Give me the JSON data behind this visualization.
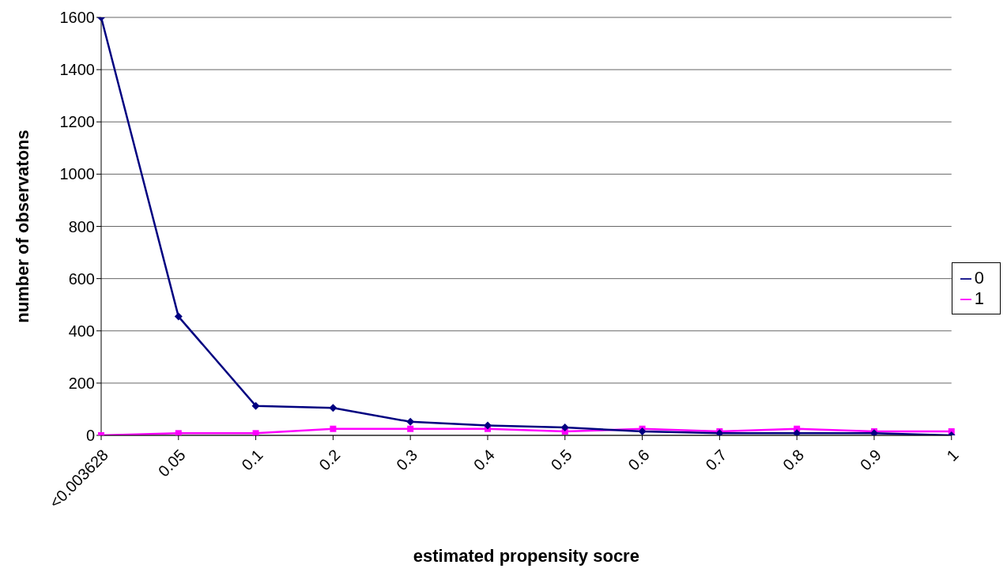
{
  "chart_data": {
    "type": "line",
    "xlabel": "estimated propensity socre",
    "ylabel": "number of observatons",
    "categories": [
      "<0.003628",
      "0.05",
      "0.1",
      "0.2",
      "0.3",
      "0.4",
      "0.5",
      "0.6",
      "0.7",
      "0.8",
      "0.9",
      "1"
    ],
    "series": [
      {
        "name": "0",
        "color": "#000080",
        "marker": "diamond",
        "values": [
          1600,
          455,
          113,
          105,
          52,
          38,
          30,
          15,
          8,
          8,
          8,
          0
        ]
      },
      {
        "name": "1",
        "color": "#ff00ff",
        "marker": "square",
        "values": [
          0,
          8,
          8,
          25,
          25,
          25,
          15,
          25,
          15,
          25,
          15,
          15
        ]
      }
    ],
    "ylim": [
      0,
      1600
    ],
    "yticks": [
      0,
      200,
      400,
      600,
      800,
      1000,
      1200,
      1400,
      1600
    ],
    "grid": "y",
    "legend": "right"
  }
}
